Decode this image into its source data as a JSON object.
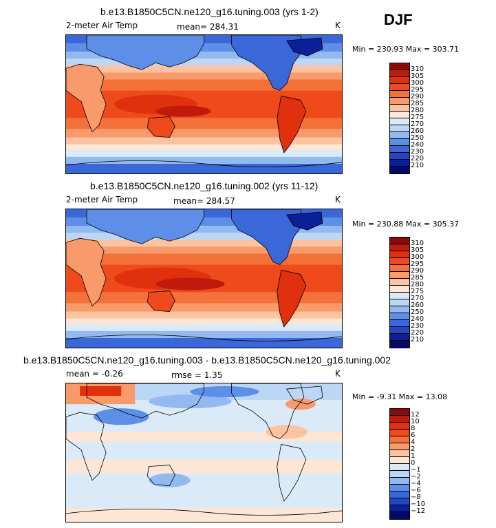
{
  "season": "DJF",
  "panels": [
    {
      "title": "b.e13.B1850C5CN.ne120_g16.tuning.003 (yrs 1-2)",
      "left_label": "2-meter Air Temp",
      "stat1": "mean= 284.31",
      "stat2": "",
      "unit": "K",
      "minmax": "Min = 230.93 Max = 303.71",
      "ticks": [
        "310",
        "305",
        "300",
        "295",
        "290",
        "285",
        "280",
        "275",
        "270",
        "260",
        "250",
        "240",
        "230",
        "220",
        "210"
      ],
      "colors": [
        "#8b0a0a",
        "#c01a0c",
        "#e0300e",
        "#ee4a1c",
        "#f5713a",
        "#f89a6a",
        "#fbc3a0",
        "#fde6d5",
        "#dbeaf8",
        "#bcd6f6",
        "#92baf0",
        "#5d8ee8",
        "#3a68d8",
        "#2347c2",
        "#0b1f98",
        "#040a6a"
      ]
    },
    {
      "title": "b.e13.B1850C5CN.ne120_g16.tuning.002 (yrs 11-12)",
      "left_label": "2-meter Air Temp",
      "stat1": "mean= 284.57",
      "stat2": "",
      "unit": "K",
      "minmax": "Min = 230.88 Max = 305.37",
      "ticks": [
        "310",
        "305",
        "300",
        "295",
        "290",
        "285",
        "280",
        "275",
        "270",
        "260",
        "250",
        "240",
        "230",
        "220",
        "210"
      ],
      "colors": [
        "#8b0a0a",
        "#c01a0c",
        "#e0300e",
        "#ee4a1c",
        "#f5713a",
        "#f89a6a",
        "#fbc3a0",
        "#fde6d5",
        "#dbeaf8",
        "#bcd6f6",
        "#92baf0",
        "#5d8ee8",
        "#3a68d8",
        "#2347c2",
        "#0b1f98",
        "#040a6a"
      ]
    },
    {
      "title": "b.e13.B1850C5CN.ne120_g16.tuning.003 - b.e13.B1850C5CN.ne120_g16.tuning.002",
      "left_label": "mean =  -0.26",
      "stat1": "rmse =   1.35",
      "stat2": "",
      "unit": "K",
      "minmax": "Min =  -9.31 Max =  13.08",
      "ticks": [
        "12",
        "10",
        "8",
        "6",
        "4",
        "2",
        "1",
        "0",
        "−1",
        "−2",
        "−4",
        "−6",
        "−8",
        "−10",
        "−12"
      ],
      "colors": [
        "#8b0a0a",
        "#c01a0c",
        "#e0300e",
        "#ee4a1c",
        "#f5713a",
        "#f89a6a",
        "#fbc3a0",
        "#fde6d5",
        "#dbeaf8",
        "#bcd6f6",
        "#92baf0",
        "#5d8ee8",
        "#3a68d8",
        "#2347c2",
        "#0b1f98",
        "#040a6a"
      ]
    }
  ]
}
